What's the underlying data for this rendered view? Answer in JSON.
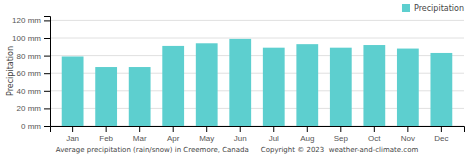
{
  "chart_data": {
    "type": "bar",
    "categories": [
      "Jan",
      "Feb",
      "Mar",
      "Apr",
      "May",
      "Jun",
      "Jul",
      "Aug",
      "Sep",
      "Oct",
      "Nov",
      "Dec"
    ],
    "series": [
      {
        "name": "Precipitation",
        "color": "#5dcfcf",
        "values": [
          79,
          67,
          67,
          91,
          94,
          99,
          89,
          93,
          89,
          92,
          88,
          83
        ]
      }
    ],
    "ylabel": "Precipitation",
    "xlabel": "Average precipitation (rain/snow) in Creemore, Canada",
    "annotations": [
      "Copyright © 2023  weather-and-climate.com"
    ],
    "ylim": [
      0,
      125
    ],
    "yticks": [
      {
        "value": 0,
        "label": "0 mm"
      },
      {
        "value": 20,
        "label": "20 mm"
      },
      {
        "value": 40,
        "label": "40 mm"
      },
      {
        "value": 60,
        "label": "60 mm"
      },
      {
        "value": 80,
        "label": "80 mm"
      },
      {
        "value": 100,
        "label": "100 mm"
      },
      {
        "value": 120,
        "label": "120 mm"
      }
    ],
    "grid": true,
    "legend": "upper right"
  }
}
